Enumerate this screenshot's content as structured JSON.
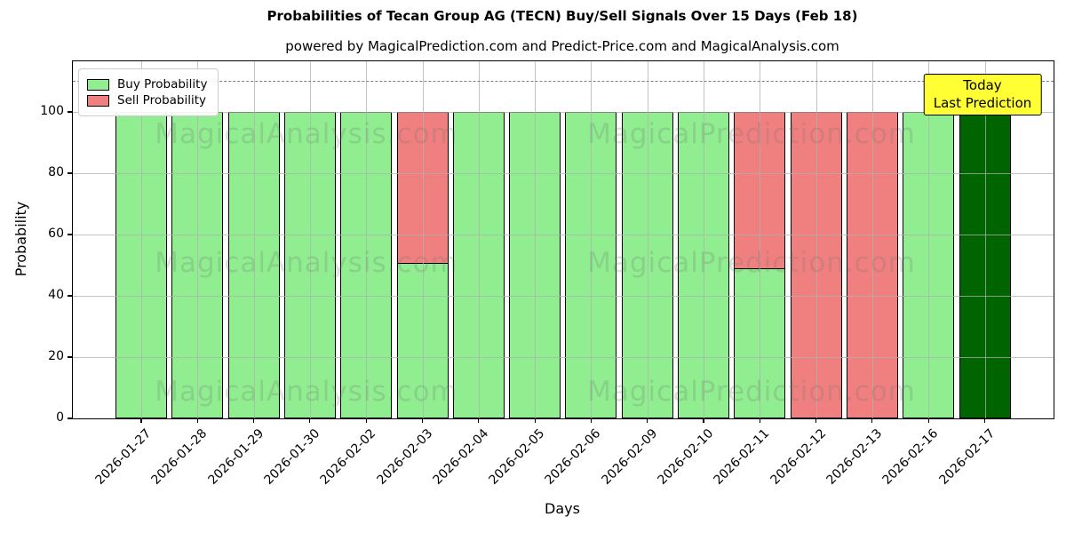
{
  "title": "Probabilities of Tecan Group AG (TECN) Buy/Sell Signals Over 15 Days (Feb 18)",
  "subtitle": "powered by MagicalPrediction.com and Predict-Price.com and MagicalAnalysis.com",
  "legend": {
    "items": [
      {
        "label": "Buy Probability",
        "color": "#90ee90"
      },
      {
        "label": "Sell Probability",
        "color": "#f08080"
      }
    ]
  },
  "annotation": {
    "lines": [
      "Today",
      "Last Prediction"
    ],
    "bg_color": "#ffff33"
  },
  "watermarks": [
    "MagicalAnalysis.com",
    "MagicalPrediction.com"
  ],
  "chart_data": {
    "type": "bar",
    "stacked": true,
    "title": "Probabilities of Tecan Group AG (TECN) Buy/Sell Signals Over 15 Days (Feb 18)",
    "xlabel": "Days",
    "ylabel": "Probability",
    "categories": [
      "2026-01-27",
      "2026-01-28",
      "2026-01-29",
      "2026-01-30",
      "2026-02-02",
      "2026-02-03",
      "2026-02-04",
      "2026-02-05",
      "2026-02-06",
      "2026-02-09",
      "2026-02-10",
      "2026-02-11",
      "2026-02-12",
      "2026-02-13",
      "2026-02-16",
      "2026-02-17"
    ],
    "series": [
      {
        "name": "Buy Probability",
        "color": "#90ee90",
        "values": [
          100,
          100,
          100,
          100,
          100,
          51,
          100,
          100,
          100,
          100,
          100,
          49,
          0,
          0,
          100,
          100
        ]
      },
      {
        "name": "Sell Probability",
        "color": "#f08080",
        "values": [
          0,
          0,
          0,
          0,
          0,
          49,
          0,
          0,
          0,
          0,
          0,
          51,
          100,
          100,
          0,
          0
        ]
      }
    ],
    "today_index": 15,
    "today_color": "#006400",
    "yticks": [
      0,
      20,
      40,
      60,
      80,
      100
    ],
    "ylim": [
      0,
      116.5
    ],
    "threshold_line": {
      "y": 110,
      "style": "dashed",
      "color": "#7f7f7f"
    },
    "grid": true,
    "legend_position": "upper-left",
    "bar_edge_color": "#000000"
  }
}
